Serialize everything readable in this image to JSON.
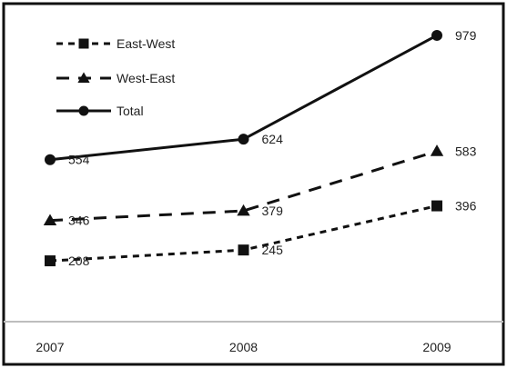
{
  "chart_data": {
    "type": "line",
    "x": [
      "2007",
      "2008",
      "2009"
    ],
    "series": [
      {
        "name": "East-West",
        "values": [
          208,
          245,
          396
        ],
        "dash": "short",
        "marker": "square"
      },
      {
        "name": "West-East",
        "values": [
          346,
          379,
          583
        ],
        "dash": "long",
        "marker": "triangle"
      },
      {
        "name": "Total",
        "values": [
          554,
          624,
          979
        ],
        "dash": "solid",
        "marker": "circle"
      }
    ],
    "title": "",
    "xlabel": "",
    "ylabel": "",
    "ylim": [
      0,
      1100
    ],
    "grid": false,
    "legend": "top-left",
    "data_labels": true,
    "colors": {
      "line": "#111111",
      "frame": "#111111",
      "axis": "#bdbdbd",
      "text": "#222222"
    }
  }
}
